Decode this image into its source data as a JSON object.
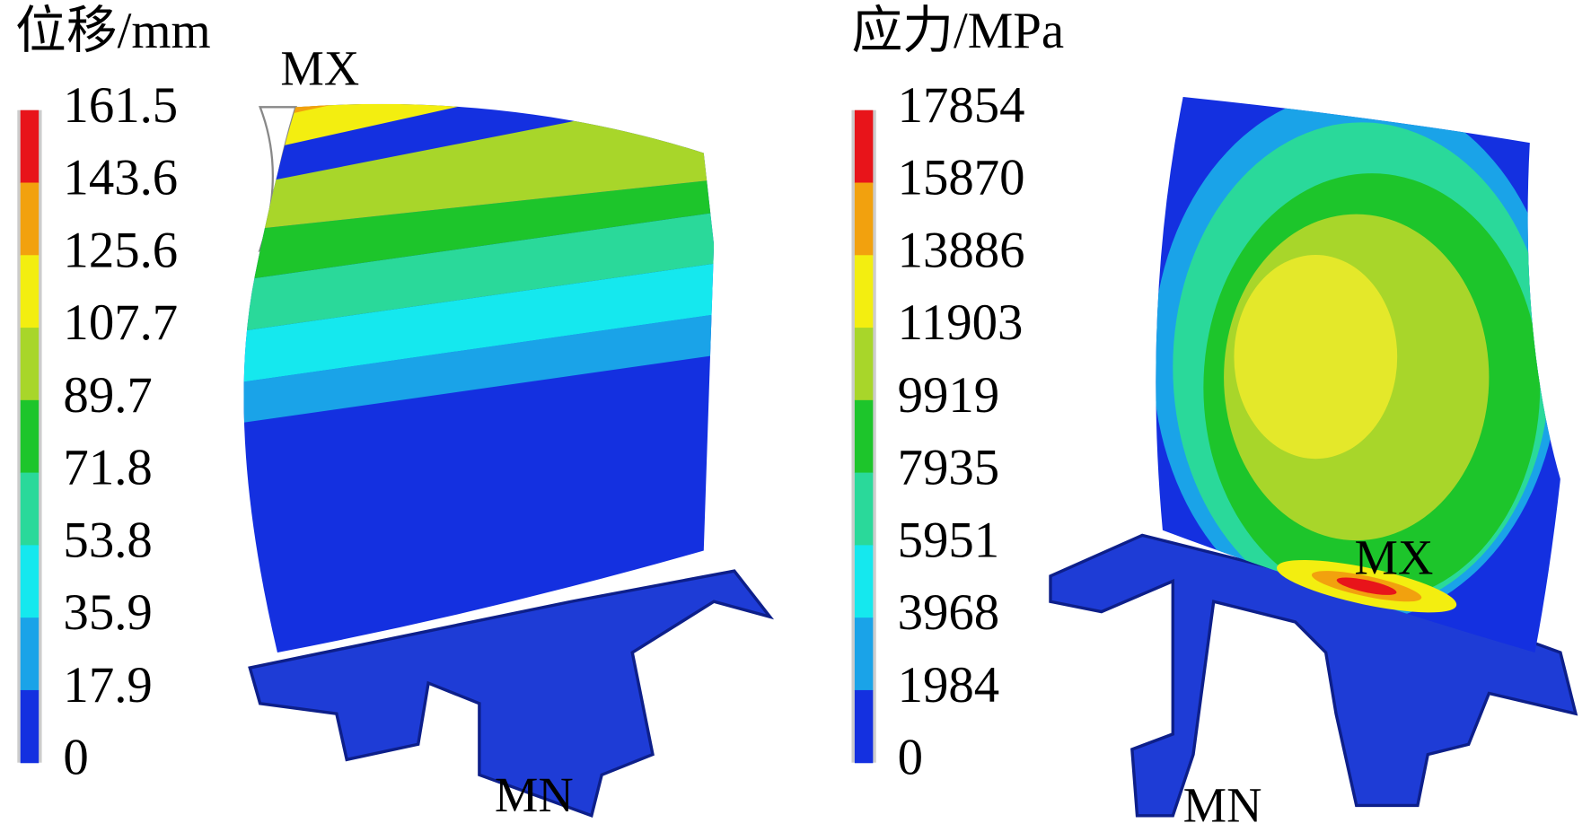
{
  "panels": [
    {
      "title": "位移/mm",
      "legend_labels": [
        "161.5",
        "143.6",
        "125.6",
        "107.7",
        "89.7",
        "71.8",
        "53.8",
        "35.9",
        "17.9",
        "0"
      ],
      "max_label": "MX",
      "min_label": "MN"
    },
    {
      "title": "应力/MPa",
      "legend_labels": [
        "17854",
        "15870",
        "13886",
        "11903",
        "9919",
        "7935",
        "5951",
        "3968",
        "1984",
        "0"
      ],
      "max_label": "MX",
      "min_label": "MN"
    }
  ],
  "legend_colors": [
    "#e8141a",
    "#f2a10e",
    "#f3ee10",
    "#a8d62a",
    "#1dc52b",
    "#2ad99a",
    "#15e8ee",
    "#1aa3e8",
    "#1430e0"
  ]
}
